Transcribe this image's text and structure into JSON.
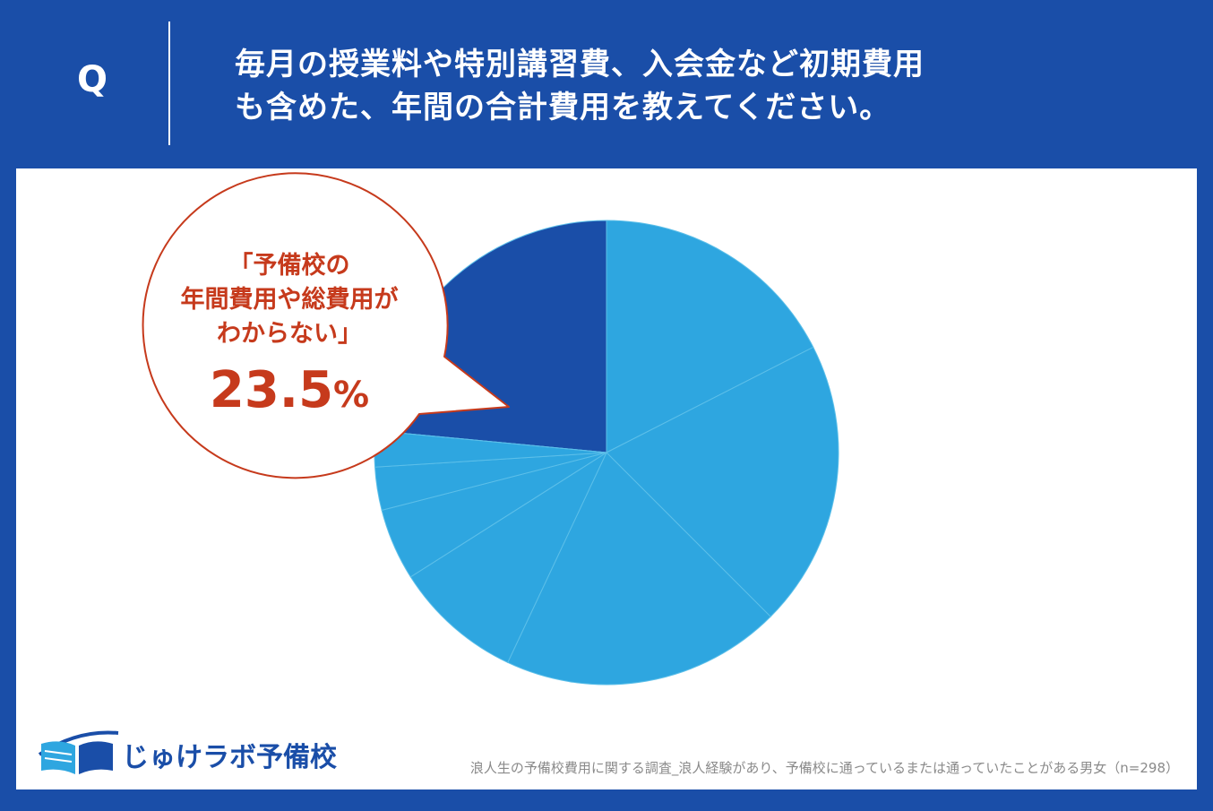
{
  "header": {
    "q_label": "Q",
    "question_line1": "毎月の授業料や特別講習費、入会金など初期費用",
    "question_line2": "も含めた、年間の合計費用を教えてください。"
  },
  "callout": {
    "line1": "「予備校の",
    "line2": "年間費用や総費用が",
    "line3": "わからない」",
    "pct_main": "23.5",
    "pct_small": "%"
  },
  "logo": {
    "text": "じゅけラボ予備校",
    "icon": "open-book-logo-icon"
  },
  "source": "浪人生の予備校費用に関する調査_浪人経験があり、予備校に通っているまたは通っていたことがある男女（n=298）",
  "colors": {
    "frame": "#1a4ea8",
    "slice": "#2ea6e0",
    "highlight_slice": "#1a4ea8",
    "callout_text": "#c63a1c",
    "callout_border": "#c63a1c"
  },
  "chart_data": {
    "type": "pie",
    "title": "",
    "values": [
      23.5,
      17.5,
      20.0,
      19.5,
      9.0,
      5.0,
      3.0,
      2.5,
      0.0
    ],
    "highlight_value": 23.5,
    "highlight_label": "「予備校の年間費用や総費用がわからない」"
  }
}
